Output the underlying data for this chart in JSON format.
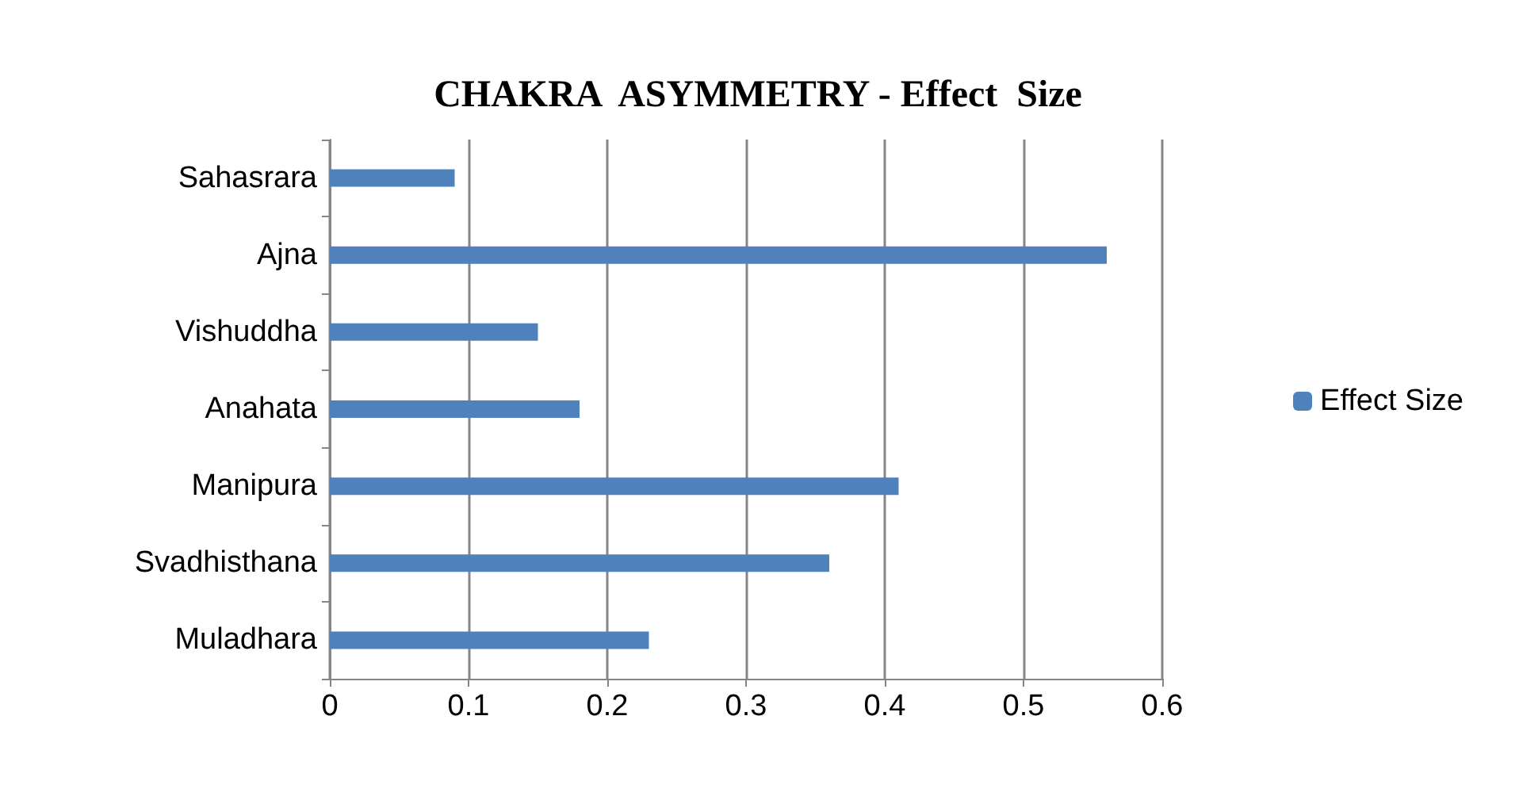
{
  "chart_data": {
    "type": "bar",
    "orientation": "horizontal",
    "title": "CHAKRA  ASYMMETRY - Effect  Size",
    "categories": [
      "Sahasrara",
      "Ajna",
      "Vishuddha",
      "Anahata",
      "Manipura",
      "Svadhisthana",
      "Muladhara"
    ],
    "series": [
      {
        "name": "Effect Size",
        "color": "#4f81bd",
        "values": [
          0.09,
          0.56,
          0.15,
          0.18,
          0.41,
          0.36,
          0.23
        ]
      }
    ],
    "xlim": [
      0,
      0.6
    ],
    "xticks": [
      0,
      0.1,
      0.2,
      0.3,
      0.4,
      0.5,
      0.6
    ],
    "grid": "x",
    "legend": "right"
  }
}
